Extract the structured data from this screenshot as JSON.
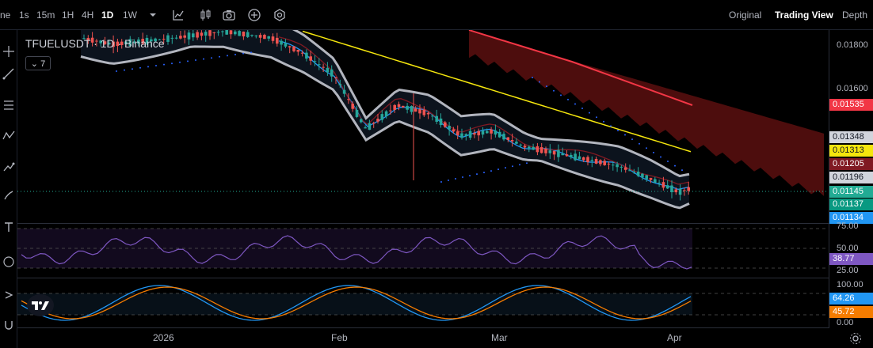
{
  "toolbar": {
    "timeframes": [
      {
        "label": "ne",
        "active": false
      },
      {
        "label": "1s",
        "active": false
      },
      {
        "label": "15m",
        "active": false
      },
      {
        "label": "1H",
        "active": false
      },
      {
        "label": "4H",
        "active": false
      },
      {
        "label": "1D",
        "active": true
      },
      {
        "label": "1W",
        "active": false
      }
    ],
    "icons": [
      "chevron-down-icon",
      "indicators-icon",
      "candles-icon",
      "camera-icon",
      "plus-circle-icon",
      "settings-hex-icon"
    ],
    "views": [
      {
        "label": "Original",
        "active": false
      },
      {
        "label": "Trading View",
        "active": true
      },
      {
        "label": "Depth",
        "active": false
      }
    ]
  },
  "chart": {
    "symbol_label": "TFUELUSDT · 1D · Binance",
    "collapse_label": "7",
    "price_ticks": [
      "0.01800",
      "0.01600"
    ],
    "price_labels": [
      {
        "value": "0.01535",
        "color": "#f23645",
        "name": "ma-long"
      },
      {
        "value": "0.01348",
        "color": "#b2b5be",
        "name": "bollinger-upper"
      },
      {
        "value": "0.01313",
        "color": "#f5e60d",
        "name": "ma-yellow"
      },
      {
        "value": "0.01205",
        "color": "#801922",
        "name": "ichimoku-cloud"
      },
      {
        "value": "0.01196",
        "color": "#d1d4dc",
        "name": "bollinger-mid"
      },
      {
        "value": "0.01145",
        "color": "#22ab94",
        "name": "last-price"
      },
      {
        "value": "0.01137",
        "color": "#089981",
        "name": "kijun"
      },
      {
        "value": "0.01134",
        "color": "#2196f3",
        "name": "tenkan"
      }
    ],
    "rsi_ticks": [
      "75.00",
      "50.00",
      "25.00"
    ],
    "rsi_value": "38.77",
    "rsi_color": "#7e57c2",
    "stoch_ticks": [
      "100.00",
      "0.00"
    ],
    "stoch_k_value": "64.26",
    "stoch_k_color": "#2196f3",
    "stoch_d_value": "45.72",
    "stoch_d_color": "#f57c00",
    "x_labels": [
      "2026",
      "Feb",
      "Mar",
      "Apr"
    ],
    "colors": {
      "up": "#26a69a",
      "down": "#ef5350",
      "cloud": "#5b0f0f",
      "band": "#b2b5be"
    }
  }
}
